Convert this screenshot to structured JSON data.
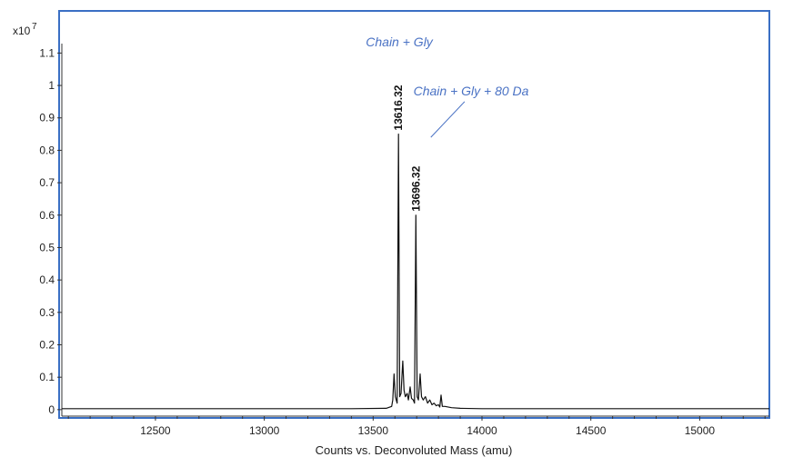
{
  "chart_data": {
    "type": "line",
    "title": "",
    "xlabel": "Counts vs. Deconvoluted Mass (amu)",
    "ylabel": "",
    "y_multiplier_label": "x10",
    "y_multiplier_exponent": "7",
    "xlim": [
      12070,
      15320
    ],
    "ylim": [
      -0.02,
      1.23
    ],
    "x_ticks": [
      12500,
      13000,
      13500,
      14000,
      14500,
      15000
    ],
    "y_ticks": [
      0,
      0.1,
      0.2,
      0.3,
      0.4,
      0.5,
      0.6,
      0.7,
      0.8,
      0.9,
      1,
      1.1
    ],
    "y_tick_labels": [
      "0",
      "0.1",
      "0.2",
      "0.3",
      "0.4",
      "0.5",
      "0.6",
      "0.7",
      "0.8",
      "0.9",
      "1",
      "1.1"
    ],
    "grid": false,
    "line_color": "#111111",
    "frame_color": "#3a6fc4",
    "annotation_color": "#4a72c4",
    "series": [
      {
        "values": [
          [
            12070,
            0.003
          ],
          [
            12500,
            0.003
          ],
          [
            13000,
            0.003
          ],
          [
            13400,
            0.003
          ],
          [
            13560,
            0.004
          ],
          [
            13585,
            0.01
          ],
          [
            13590,
            0.03
          ],
          [
            13596,
            0.11
          ],
          [
            13602,
            0.04
          ],
          [
            13610,
            0.02
          ],
          [
            13616.32,
            0.85
          ],
          [
            13622,
            0.04
          ],
          [
            13628,
            0.05
          ],
          [
            13636,
            0.15
          ],
          [
            13642,
            0.06
          ],
          [
            13648,
            0.04
          ],
          [
            13656,
            0.05
          ],
          [
            13662,
            0.03
          ],
          [
            13670,
            0.07
          ],
          [
            13676,
            0.035
          ],
          [
            13684,
            0.03
          ],
          [
            13690,
            0.02
          ],
          [
            13696.32,
            0.6
          ],
          [
            13702,
            0.04
          ],
          [
            13708,
            0.03
          ],
          [
            13716,
            0.11
          ],
          [
            13722,
            0.04
          ],
          [
            13730,
            0.03
          ],
          [
            13740,
            0.04
          ],
          [
            13750,
            0.02
          ],
          [
            13760,
            0.03
          ],
          [
            13770,
            0.015
          ],
          [
            13780,
            0.02
          ],
          [
            13790,
            0.012
          ],
          [
            13800,
            0.015
          ],
          [
            13806,
            0.008
          ],
          [
            13812,
            0.045
          ],
          [
            13818,
            0.01
          ],
          [
            13830,
            0.01
          ],
          [
            13860,
            0.006
          ],
          [
            13900,
            0.004
          ],
          [
            14000,
            0.003
          ],
          [
            14500,
            0.003
          ],
          [
            15000,
            0.003
          ],
          [
            15320,
            0.003
          ]
        ]
      }
    ],
    "peak_labels": [
      {
        "x": 13616.32,
        "y": 0.85,
        "text": "13616.32"
      },
      {
        "x": 13696.32,
        "y": 0.6,
        "text": "13696.32"
      }
    ],
    "annotations": [
      {
        "text": "Chain + Gly",
        "x": 13620,
        "y": 1.12
      },
      {
        "text": "Chain + Gly + 80 Da",
        "x": 13950,
        "y": 0.97,
        "pointer_to": [
          13765,
          0.84
        ],
        "pointer_from": [
          13920,
          0.95
        ]
      }
    ]
  }
}
